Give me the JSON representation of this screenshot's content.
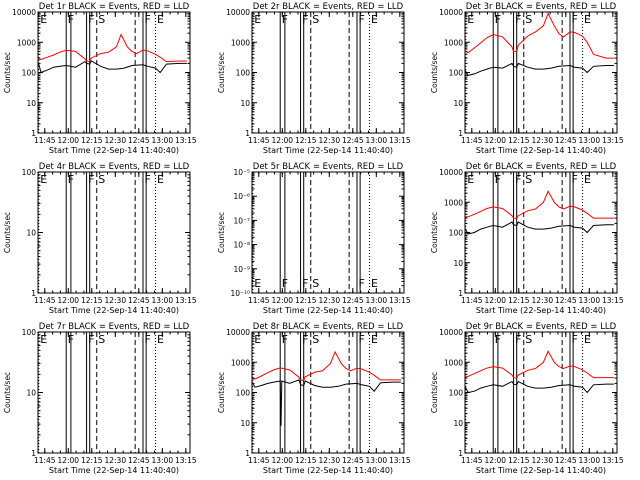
{
  "xlabel": "Start Time (22-Sep-14 11:40:40)",
  "ylabel": "Counts/sec",
  "xticks": [
    "11:45",
    "12:00",
    "12:15",
    "12:30",
    "12:45",
    "13:00",
    "13:15"
  ],
  "xtick_minutes": [
    4.33,
    19.33,
    34.33,
    49.33,
    64.33,
    79.33,
    94.33
  ],
  "xlim_minutes": [
    0,
    97
  ],
  "colors": {
    "events": "#000000",
    "lld": "#ff0000",
    "frame": "#000000"
  },
  "markers": [
    {
      "label": "E",
      "minute": 0.5,
      "style": "dotted"
    },
    {
      "label": "F",
      "minute": 18.0,
      "style": "solid"
    },
    {
      "label": "",
      "minute": 21.0,
      "style": "solid"
    },
    {
      "label": "F",
      "minute": 31.0,
      "style": "solid"
    },
    {
      "label": "",
      "minute": 33.0,
      "style": "solid"
    },
    {
      "label": "S",
      "minute": 37.5,
      "style": "dashed"
    },
    {
      "label": "",
      "minute": 62.0,
      "style": "dashed"
    },
    {
      "label": "F",
      "minute": 67.0,
      "style": "solid"
    },
    {
      "label": "",
      "minute": 69.0,
      "style": "solid"
    },
    {
      "label": "E",
      "minute": 75.0,
      "style": "dotted"
    }
  ],
  "chart_data": [
    {
      "type": "line",
      "title": "Det 1r BLACK = Events, RED = LLD",
      "ylim": [
        1,
        10000
      ],
      "yscale": "log",
      "yticks": [
        "1",
        "10",
        "100",
        "1000",
        "10000"
      ],
      "series": [
        {
          "name": "BLACK = Events",
          "x": [
            0,
            2,
            6,
            10,
            14,
            18,
            24,
            30,
            31,
            33,
            34,
            40,
            45,
            50,
            55,
            60,
            67,
            70,
            75,
            78,
            82,
            90,
            95
          ],
          "y": [
            230,
            100,
            120,
            150,
            160,
            170,
            150,
            230,
            200,
            190,
            240,
            160,
            130,
            130,
            140,
            170,
            180,
            160,
            140,
            100,
            190,
            200,
            200
          ]
        },
        {
          "name": "RED = LLD",
          "x": [
            0,
            2,
            6,
            10,
            14,
            18,
            24,
            30,
            31,
            33,
            34,
            40,
            45,
            50,
            53,
            57,
            60,
            63,
            67,
            70,
            75,
            78,
            82,
            90,
            95
          ],
          "y": [
            270,
            270,
            320,
            380,
            470,
            540,
            500,
            280,
            240,
            230,
            300,
            420,
            470,
            700,
            1800,
            700,
            500,
            420,
            550,
            520,
            400,
            320,
            230,
            240,
            240
          ]
        }
      ]
    },
    {
      "type": "line",
      "title": "Det 2r BLACK = Events, RED = LLD",
      "ylim": [
        1,
        10000
      ],
      "yscale": "log",
      "yticks": [
        "1",
        "10",
        "100",
        "1000",
        "10000"
      ],
      "series": []
    },
    {
      "type": "line",
      "title": "Det 3r BLACK = Events, RED = LLD",
      "ylim": [
        1,
        10000
      ],
      "yscale": "log",
      "yticks": [
        "1",
        "10",
        "100",
        "1000",
        "10000"
      ],
      "series": [
        {
          "name": "BLACK = Events",
          "x": [
            0,
            2,
            6,
            10,
            14,
            18,
            24,
            30,
            31,
            33,
            34,
            40,
            45,
            50,
            55,
            60,
            67,
            70,
            75,
            78,
            82,
            90,
            95
          ],
          "y": [
            120,
            80,
            90,
            110,
            130,
            150,
            140,
            200,
            160,
            150,
            200,
            150,
            130,
            130,
            140,
            160,
            170,
            150,
            140,
            100,
            160,
            170,
            170
          ]
        },
        {
          "name": "RED = LLD",
          "x": [
            0,
            2,
            6,
            10,
            14,
            18,
            24,
            30,
            31,
            33,
            34,
            40,
            45,
            50,
            53,
            57,
            60,
            63,
            67,
            70,
            75,
            78,
            82,
            90,
            95
          ],
          "y": [
            500,
            450,
            650,
            950,
            1400,
            1800,
            1500,
            700,
            500,
            500,
            800,
            1600,
            2200,
            3500,
            9000,
            3500,
            1900,
            1500,
            2200,
            2100,
            1600,
            1000,
            400,
            300,
            300
          ]
        }
      ]
    },
    {
      "type": "line",
      "title": "Det 4r BLACK = Events, RED = LLD",
      "ylim": [
        1,
        100
      ],
      "yscale": "log",
      "yticks": [
        "1",
        "10",
        "100"
      ],
      "series": []
    },
    {
      "type": "line",
      "title": "Det 5r BLACK = Events, RED = LLD",
      "ylim": [
        1e-10,
        1e-05
      ],
      "yscale": "log",
      "yticks": [
        "10⁻¹⁰",
        "10⁻⁹",
        "10⁻⁸",
        "10⁻⁷",
        "10⁻⁶",
        "10⁻⁵"
      ],
      "series": []
    },
    {
      "type": "line",
      "title": "Det 6r BLACK = Events, RED = LLD",
      "ylim": [
        1,
        10000
      ],
      "yscale": "log",
      "yticks": [
        "1",
        "10",
        "100",
        "1000",
        "10000"
      ],
      "series": [
        {
          "name": "BLACK = Events",
          "x": [
            0,
            2,
            6,
            10,
            14,
            18,
            24,
            30,
            31,
            33,
            34,
            40,
            45,
            50,
            55,
            60,
            67,
            70,
            75,
            78,
            82,
            90,
            95
          ],
          "y": [
            140,
            90,
            100,
            130,
            150,
            170,
            150,
            220,
            180,
            170,
            220,
            150,
            130,
            130,
            140,
            160,
            170,
            150,
            140,
            100,
            170,
            180,
            180
          ]
        },
        {
          "name": "RED = LLD",
          "x": [
            0,
            2,
            6,
            10,
            14,
            18,
            24,
            30,
            31,
            33,
            34,
            40,
            45,
            50,
            53,
            57,
            60,
            63,
            67,
            70,
            75,
            78,
            82,
            90,
            95
          ],
          "y": [
            330,
            330,
            400,
            500,
            620,
            700,
            620,
            360,
            300,
            290,
            360,
            520,
            600,
            1000,
            2300,
            1000,
            700,
            600,
            740,
            700,
            550,
            430,
            300,
            300,
            300
          ]
        }
      ]
    },
    {
      "type": "line",
      "title": "Det 7r BLACK = Events, RED = LLD",
      "ylim": [
        1,
        100
      ],
      "yscale": "log",
      "yticks": [
        "1",
        "10",
        "100"
      ],
      "series": []
    },
    {
      "type": "line",
      "title": "Det 8r BLACK = Events, RED = LLD",
      "ylim": [
        1,
        10000
      ],
      "yscale": "log",
      "yticks": [
        "1",
        "10",
        "100",
        "1000",
        "10000"
      ],
      "series": [
        {
          "name": "BLACK = Events",
          "x": [
            0,
            2,
            6,
            10,
            14,
            18,
            18.5,
            19,
            24,
            30,
            31,
            33,
            34,
            40,
            45,
            50,
            55,
            60,
            67,
            70,
            75,
            78,
            82,
            90,
            95
          ],
          "y": [
            220,
            150,
            170,
            200,
            220,
            240,
            8,
            240,
            200,
            260,
            180,
            170,
            240,
            170,
            150,
            150,
            160,
            190,
            200,
            180,
            160,
            110,
            210,
            220,
            220
          ]
        },
        {
          "name": "RED = LLD",
          "x": [
            0,
            2,
            6,
            10,
            14,
            18,
            24,
            30,
            31,
            33,
            34,
            40,
            45,
            50,
            53,
            57,
            60,
            63,
            67,
            70,
            75,
            78,
            82,
            90,
            95
          ],
          "y": [
            280,
            280,
            350,
            450,
            560,
            650,
            560,
            320,
            260,
            250,
            330,
            470,
            520,
            900,
            2200,
            900,
            620,
            520,
            640,
            600,
            470,
            370,
            260,
            260,
            260
          ]
        }
      ]
    },
    {
      "type": "line",
      "title": "Det 9r BLACK = Events, RED = LLD",
      "ylim": [
        1,
        10000
      ],
      "yscale": "log",
      "yticks": [
        "1",
        "10",
        "100",
        "1000",
        "10000"
      ],
      "series": [
        {
          "name": "BLACK = Events",
          "x": [
            0,
            2,
            6,
            10,
            14,
            18,
            24,
            30,
            31,
            33,
            34,
            40,
            45,
            50,
            55,
            60,
            67,
            70,
            75,
            78,
            82,
            90,
            95
          ],
          "y": [
            160,
            100,
            110,
            140,
            160,
            180,
            160,
            230,
            190,
            180,
            230,
            160,
            140,
            140,
            150,
            170,
            180,
            160,
            150,
            100,
            180,
            190,
            190
          ]
        },
        {
          "name": "RED = LLD",
          "x": [
            0,
            2,
            6,
            10,
            14,
            18,
            24,
            30,
            31,
            33,
            34,
            40,
            45,
            50,
            53,
            57,
            60,
            63,
            67,
            70,
            75,
            78,
            82,
            90,
            95
          ],
          "y": [
            340,
            340,
            420,
            520,
            640,
            720,
            640,
            380,
            310,
            300,
            380,
            540,
            620,
            1000,
            2300,
            1000,
            720,
            620,
            760,
            720,
            560,
            440,
            310,
            310,
            310
          ]
        }
      ]
    }
  ]
}
